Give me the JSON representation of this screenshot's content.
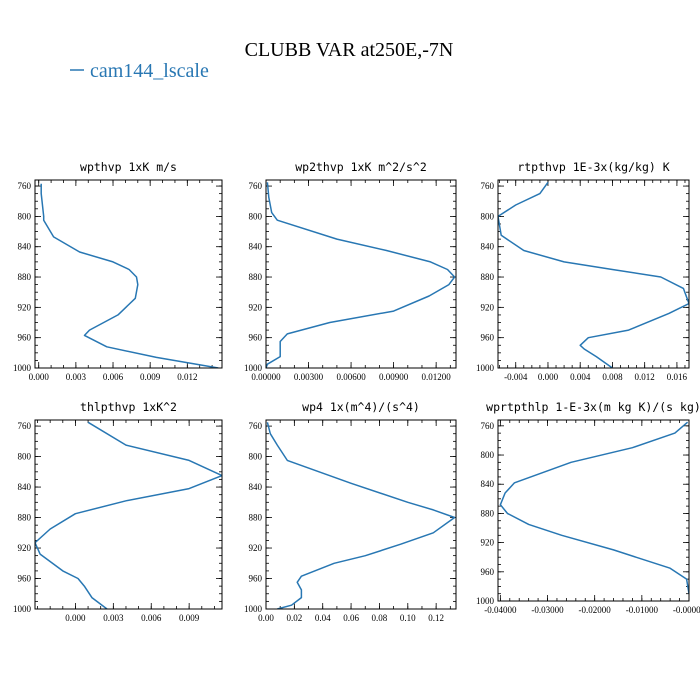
{
  "figure": {
    "title": "CLUBB VAR at250E,-7N",
    "legend": {
      "label": "cam144_lscale",
      "color": "#2877b3"
    }
  },
  "chart_data": [
    {
      "type": "line",
      "title": "wpthvp  1xK m/s",
      "series": [
        {
          "name": "cam144_lscale",
          "color": "#2877b3",
          "x": [
            0.0002,
            0.0002,
            0.0004,
            0.0004,
            0.0012,
            0.0033,
            0.006,
            0.0073,
            0.0079,
            0.008,
            0.0078,
            0.0064,
            0.0041,
            0.0037,
            0.0055,
            0.0095,
            0.0145
          ],
          "y": [
            757,
            770,
            800,
            805,
            827,
            847,
            860,
            870,
            880,
            890,
            908,
            930,
            950,
            957,
            972,
            986,
            1000
          ]
        }
      ],
      "ylim": [
        1000,
        752
      ],
      "xlim": [
        -0.0003,
        0.0148
      ],
      "xticks": [
        0.0,
        0.003,
        0.006,
        0.009,
        0.012
      ],
      "xticklabels": [
        "0.000",
        "0.003",
        "0.006",
        "0.009",
        "0.012"
      ],
      "yticks": [
        760,
        800,
        840,
        880,
        920,
        960,
        1000
      ],
      "yticklabels": [
        "760",
        "800",
        "840",
        "880",
        "920",
        "960",
        "1000"
      ],
      "xminor_step": 0.001,
      "yminor_step": 10
    },
    {
      "type": "line",
      "title": "wp2thvp  1xK m^2/s^2",
      "series": [
        {
          "name": "cam144_lscale",
          "color": "#2877b3",
          "x": [
            0.0001,
            0.0002,
            0.0004,
            0.0008,
            0.005,
            0.0085,
            0.0116,
            0.0128,
            0.0133,
            0.0129,
            0.0115,
            0.009,
            0.0045,
            0.0015,
            0.001,
            0.001,
            0.0001,
            0.0
          ],
          "y": [
            755,
            775,
            795,
            805,
            830,
            845,
            860,
            870,
            880,
            890,
            905,
            925,
            940,
            955,
            965,
            985,
            995,
            1000
          ]
        }
      ],
      "ylim": [
        1000,
        752
      ],
      "xlim": [
        0.0,
        0.0134
      ],
      "xticks": [
        0.0,
        0.003,
        0.006,
        0.009,
        0.012
      ],
      "xticklabels": [
        "0.00000",
        "0.00300",
        "0.00600",
        "0.00900",
        "0.01200"
      ],
      "yticks": [
        760,
        800,
        840,
        880,
        920,
        960,
        1000
      ],
      "yticklabels": [
        "760",
        "800",
        "840",
        "880",
        "920",
        "960",
        "1000"
      ],
      "xminor_step": 0.001,
      "yminor_step": 10
    },
    {
      "type": "line",
      "title": "rtpthvp  1E-3x(kg/kg) K",
      "series": [
        {
          "name": "cam144_lscale",
          "color": "#2877b3",
          "x": [
            0.0,
            -0.001,
            -0.004,
            -0.0062,
            -0.0058,
            -0.003,
            0.002,
            0.008,
            0.014,
            0.0168,
            0.0175,
            0.015,
            0.01,
            0.005,
            0.004,
            0.0045,
            0.006,
            0.008
          ],
          "y": [
            755,
            770,
            785,
            800,
            825,
            845,
            860,
            870,
            880,
            895,
            915,
            928,
            950,
            960,
            970,
            975,
            985,
            1000
          ]
        }
      ],
      "ylim": [
        1000,
        752
      ],
      "xlim": [
        -0.0062,
        0.0175
      ],
      "xticks": [
        -0.004,
        0.0,
        0.004,
        0.008,
        0.012,
        0.016
      ],
      "xticklabels": [
        "-0.004",
        "0.000",
        "0.004",
        "0.008",
        "0.012",
        "0.016"
      ],
      "yticks": [
        760,
        800,
        840,
        880,
        920,
        960,
        1000
      ],
      "yticklabels": [
        "760",
        "800",
        "840",
        "880",
        "920",
        "960",
        "1000"
      ],
      "xminor_step": 0.001,
      "yminor_step": 10
    },
    {
      "type": "line",
      "title": "thlpthvp  1xK^2",
      "series": [
        {
          "name": "cam144_lscale",
          "color": "#2877b3",
          "x": [
            0.001,
            0.004,
            0.009,
            0.0116,
            0.009,
            0.004,
            0.0,
            -0.002,
            -0.0032,
            -0.0028,
            -0.001,
            0.0002,
            0.0007,
            0.0013,
            0.0025
          ],
          "y": [
            755,
            785,
            805,
            825,
            842,
            858,
            875,
            895,
            913,
            928,
            950,
            960,
            970,
            985,
            1000
          ]
        }
      ],
      "ylim": [
        1000,
        752
      ],
      "xlim": [
        -0.0032,
        0.0116
      ],
      "xticks": [
        0.0,
        0.003,
        0.006,
        0.009
      ],
      "xticklabels": [
        "0.000",
        "0.003",
        "0.006",
        "0.009"
      ],
      "yticks": [
        760,
        800,
        840,
        880,
        920,
        960,
        1000
      ],
      "yticklabels": [
        "760",
        "800",
        "840",
        "880",
        "920",
        "960",
        "1000"
      ],
      "xminor_step": 0.001,
      "yminor_step": 10
    },
    {
      "type": "line",
      "title": "wp4  1x(m^4)/(s^4)",
      "series": [
        {
          "name": "cam144_lscale",
          "color": "#2877b3",
          "x": [
            0.001,
            0.003,
            0.008,
            0.015,
            0.06,
            0.1,
            0.118,
            0.133,
            0.118,
            0.095,
            0.07,
            0.048,
            0.025,
            0.022,
            0.025,
            0.025,
            0.018,
            0.008
          ],
          "y": [
            755,
            770,
            785,
            805,
            835,
            860,
            870,
            880,
            900,
            915,
            930,
            940,
            957,
            965,
            975,
            985,
            995,
            1000
          ]
        }
      ],
      "ylim": [
        1000,
        752
      ],
      "xlim": [
        0.0,
        0.134
      ],
      "xticks": [
        0.0,
        0.02,
        0.04,
        0.06,
        0.08,
        0.1,
        0.12
      ],
      "xticklabels": [
        "0.00",
        "0.02",
        "0.04",
        "0.06",
        "0.08",
        "0.10",
        "0.12"
      ],
      "yticks": [
        760,
        800,
        840,
        880,
        920,
        960,
        1000
      ],
      "yticklabels": [
        "760",
        "800",
        "840",
        "880",
        "920",
        "960",
        "1000"
      ],
      "xminor_step": 0.01,
      "yminor_step": 10
    },
    {
      "type": "line",
      "title": "wprtpthlp  1-E-3x(m kg K)/(s kg)",
      "series": [
        {
          "name": "cam144_lscale",
          "color": "#2877b3",
          "x": [
            -0.0003,
            -0.003,
            -0.012,
            -0.025,
            -0.037,
            -0.039,
            -0.04,
            -0.0385,
            -0.034,
            -0.027,
            -0.016,
            -0.004,
            -0.0005,
            0.0
          ],
          "y": [
            755,
            770,
            790,
            810,
            838,
            852,
            868,
            880,
            895,
            910,
            930,
            955,
            970,
            990
          ]
        }
      ],
      "ylim": [
        1000,
        752
      ],
      "xlim": [
        -0.0405,
        0.0
      ],
      "xticks": [
        -0.04,
        -0.03,
        -0.02,
        -0.01,
        0.0
      ],
      "xticklabels": [
        "-0.04000",
        "-0.03000",
        "-0.02000",
        "-0.01000",
        "-0.00000"
      ],
      "yticks": [
        760,
        800,
        840,
        880,
        920,
        960,
        1000
      ],
      "yticklabels": [
        "760",
        "800",
        "840",
        "880",
        "920",
        "960",
        "1000"
      ],
      "xminor_step": 0.002,
      "yminor_step": 10
    }
  ]
}
